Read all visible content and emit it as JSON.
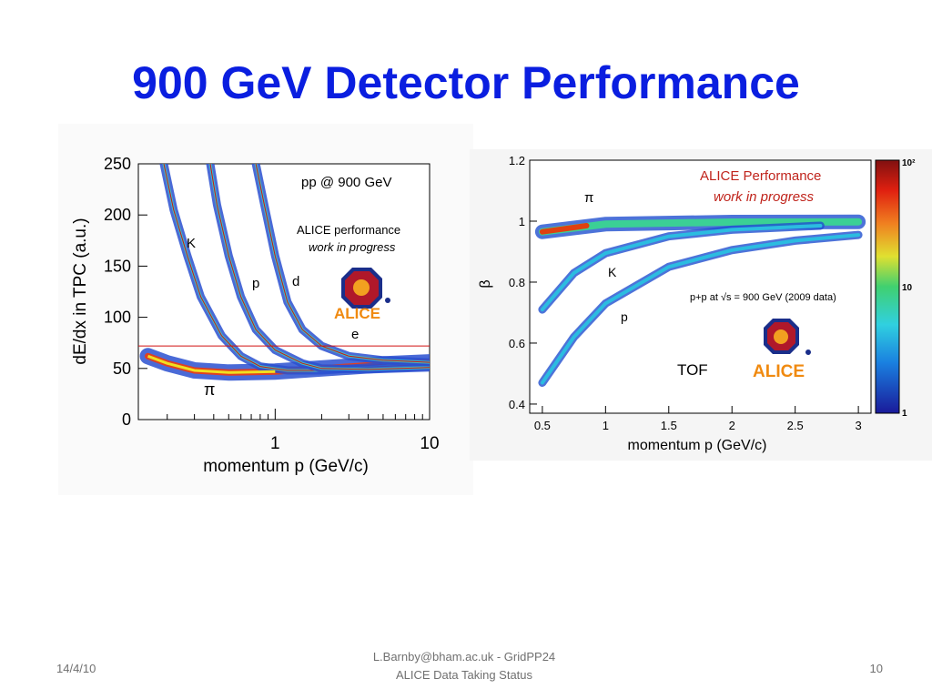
{
  "slide": {
    "title": "900 GeV Detector Performance",
    "footer_date": "14/4/10",
    "footer_line1": "L.Barnby@bham.ac.uk - GridPP24",
    "footer_line2": "ALICE Data Taking Status",
    "page_number": "10"
  },
  "chart_data": [
    {
      "type": "heatmap",
      "ylabel": "dE/dx in TPC (a.u.)",
      "xlabel": "momentum p (GeV/c)",
      "xscale": "log",
      "xlim": [
        0.13,
        10
      ],
      "ylim": [
        0,
        250
      ],
      "x_ticks": [
        "1",
        "10"
      ],
      "y_ticks": [
        "0",
        "50",
        "100",
        "150",
        "200",
        "250"
      ],
      "annotation": "pp @ 900 GeV",
      "performance_label": "ALICE performance",
      "status_label": "work in progress",
      "logo_text": "ALICE",
      "species_labels": [
        "K",
        "p",
        "d",
        "e",
        "π"
      ],
      "bands": [
        {
          "name": "π",
          "points": [
            [
              0.15,
              62
            ],
            [
              0.2,
              55
            ],
            [
              0.3,
              48
            ],
            [
              0.5,
              46
            ],
            [
              1,
              47
            ],
            [
              2,
              50
            ],
            [
              5,
              54
            ],
            [
              10,
              56
            ]
          ]
        },
        {
          "name": "K",
          "points": [
            [
              0.19,
              250
            ],
            [
              0.22,
              205
            ],
            [
              0.27,
              160
            ],
            [
              0.33,
              120
            ],
            [
              0.45,
              82
            ],
            [
              0.6,
              62
            ],
            [
              0.8,
              52
            ],
            [
              1.2,
              48
            ],
            [
              2,
              48
            ],
            [
              5,
              52
            ],
            [
              10,
              54
            ]
          ]
        },
        {
          "name": "p",
          "points": [
            [
              0.38,
              250
            ],
            [
              0.42,
              210
            ],
            [
              0.5,
              160
            ],
            [
              0.6,
              120
            ],
            [
              0.75,
              88
            ],
            [
              1,
              68
            ],
            [
              1.5,
              55
            ],
            [
              2,
              50
            ],
            [
              4,
              49
            ],
            [
              10,
              51
            ]
          ]
        },
        {
          "name": "d",
          "points": [
            [
              0.75,
              250
            ],
            [
              0.85,
              210
            ],
            [
              1,
              160
            ],
            [
              1.2,
              115
            ],
            [
              1.5,
              88
            ],
            [
              2,
              72
            ],
            [
              3,
              62
            ],
            [
              5,
              58
            ],
            [
              10,
              56
            ]
          ]
        },
        {
          "name": "e",
          "points": [
            [
              0.13,
              72
            ],
            [
              0.5,
              72
            ],
            [
              1,
              72
            ],
            [
              3,
              72
            ],
            [
              10,
              72
            ]
          ]
        }
      ]
    },
    {
      "type": "heatmap",
      "ylabel": "β",
      "xlabel": "momentum p (GeV/c)",
      "xlim": [
        0.4,
        3.1
      ],
      "ylim": [
        0.37,
        1.2
      ],
      "x_ticks": [
        "0.5",
        "1",
        "1.5",
        "2",
        "2.5",
        "3"
      ],
      "y_ticks": [
        "0.4",
        "0.6",
        "0.8",
        "1",
        "1.2"
      ],
      "performance_label": "ALICE Performance",
      "status_label": "work in progress",
      "data_label": "p+p at √s = 900 GeV (2009 data)",
      "detector_label": "TOF",
      "logo_text": "ALICE",
      "species_labels": [
        "π",
        "K",
        "p"
      ],
      "colorbar_ticks": [
        "10²",
        "10",
        "1"
      ],
      "colorbar_scale": "log",
      "colorbar_range": [
        1,
        100
      ],
      "bands": [
        {
          "name": "π",
          "points": [
            [
              0.5,
              0.965
            ],
            [
              1,
              0.99
            ],
            [
              2,
              0.997
            ],
            [
              3,
              0.998
            ]
          ]
        },
        {
          "name": "K",
          "points": [
            [
              0.5,
              0.71
            ],
            [
              0.75,
              0.83
            ],
            [
              1,
              0.895
            ],
            [
              1.5,
              0.95
            ],
            [
              2,
              0.972
            ],
            [
              2.7,
              0.985
            ]
          ]
        },
        {
          "name": "p",
          "points": [
            [
              0.5,
              0.47
            ],
            [
              0.75,
              0.62
            ],
            [
              1,
              0.73
            ],
            [
              1.5,
              0.85
            ],
            [
              2,
              0.905
            ],
            [
              2.5,
              0.936
            ],
            [
              3,
              0.955
            ]
          ]
        }
      ]
    }
  ]
}
